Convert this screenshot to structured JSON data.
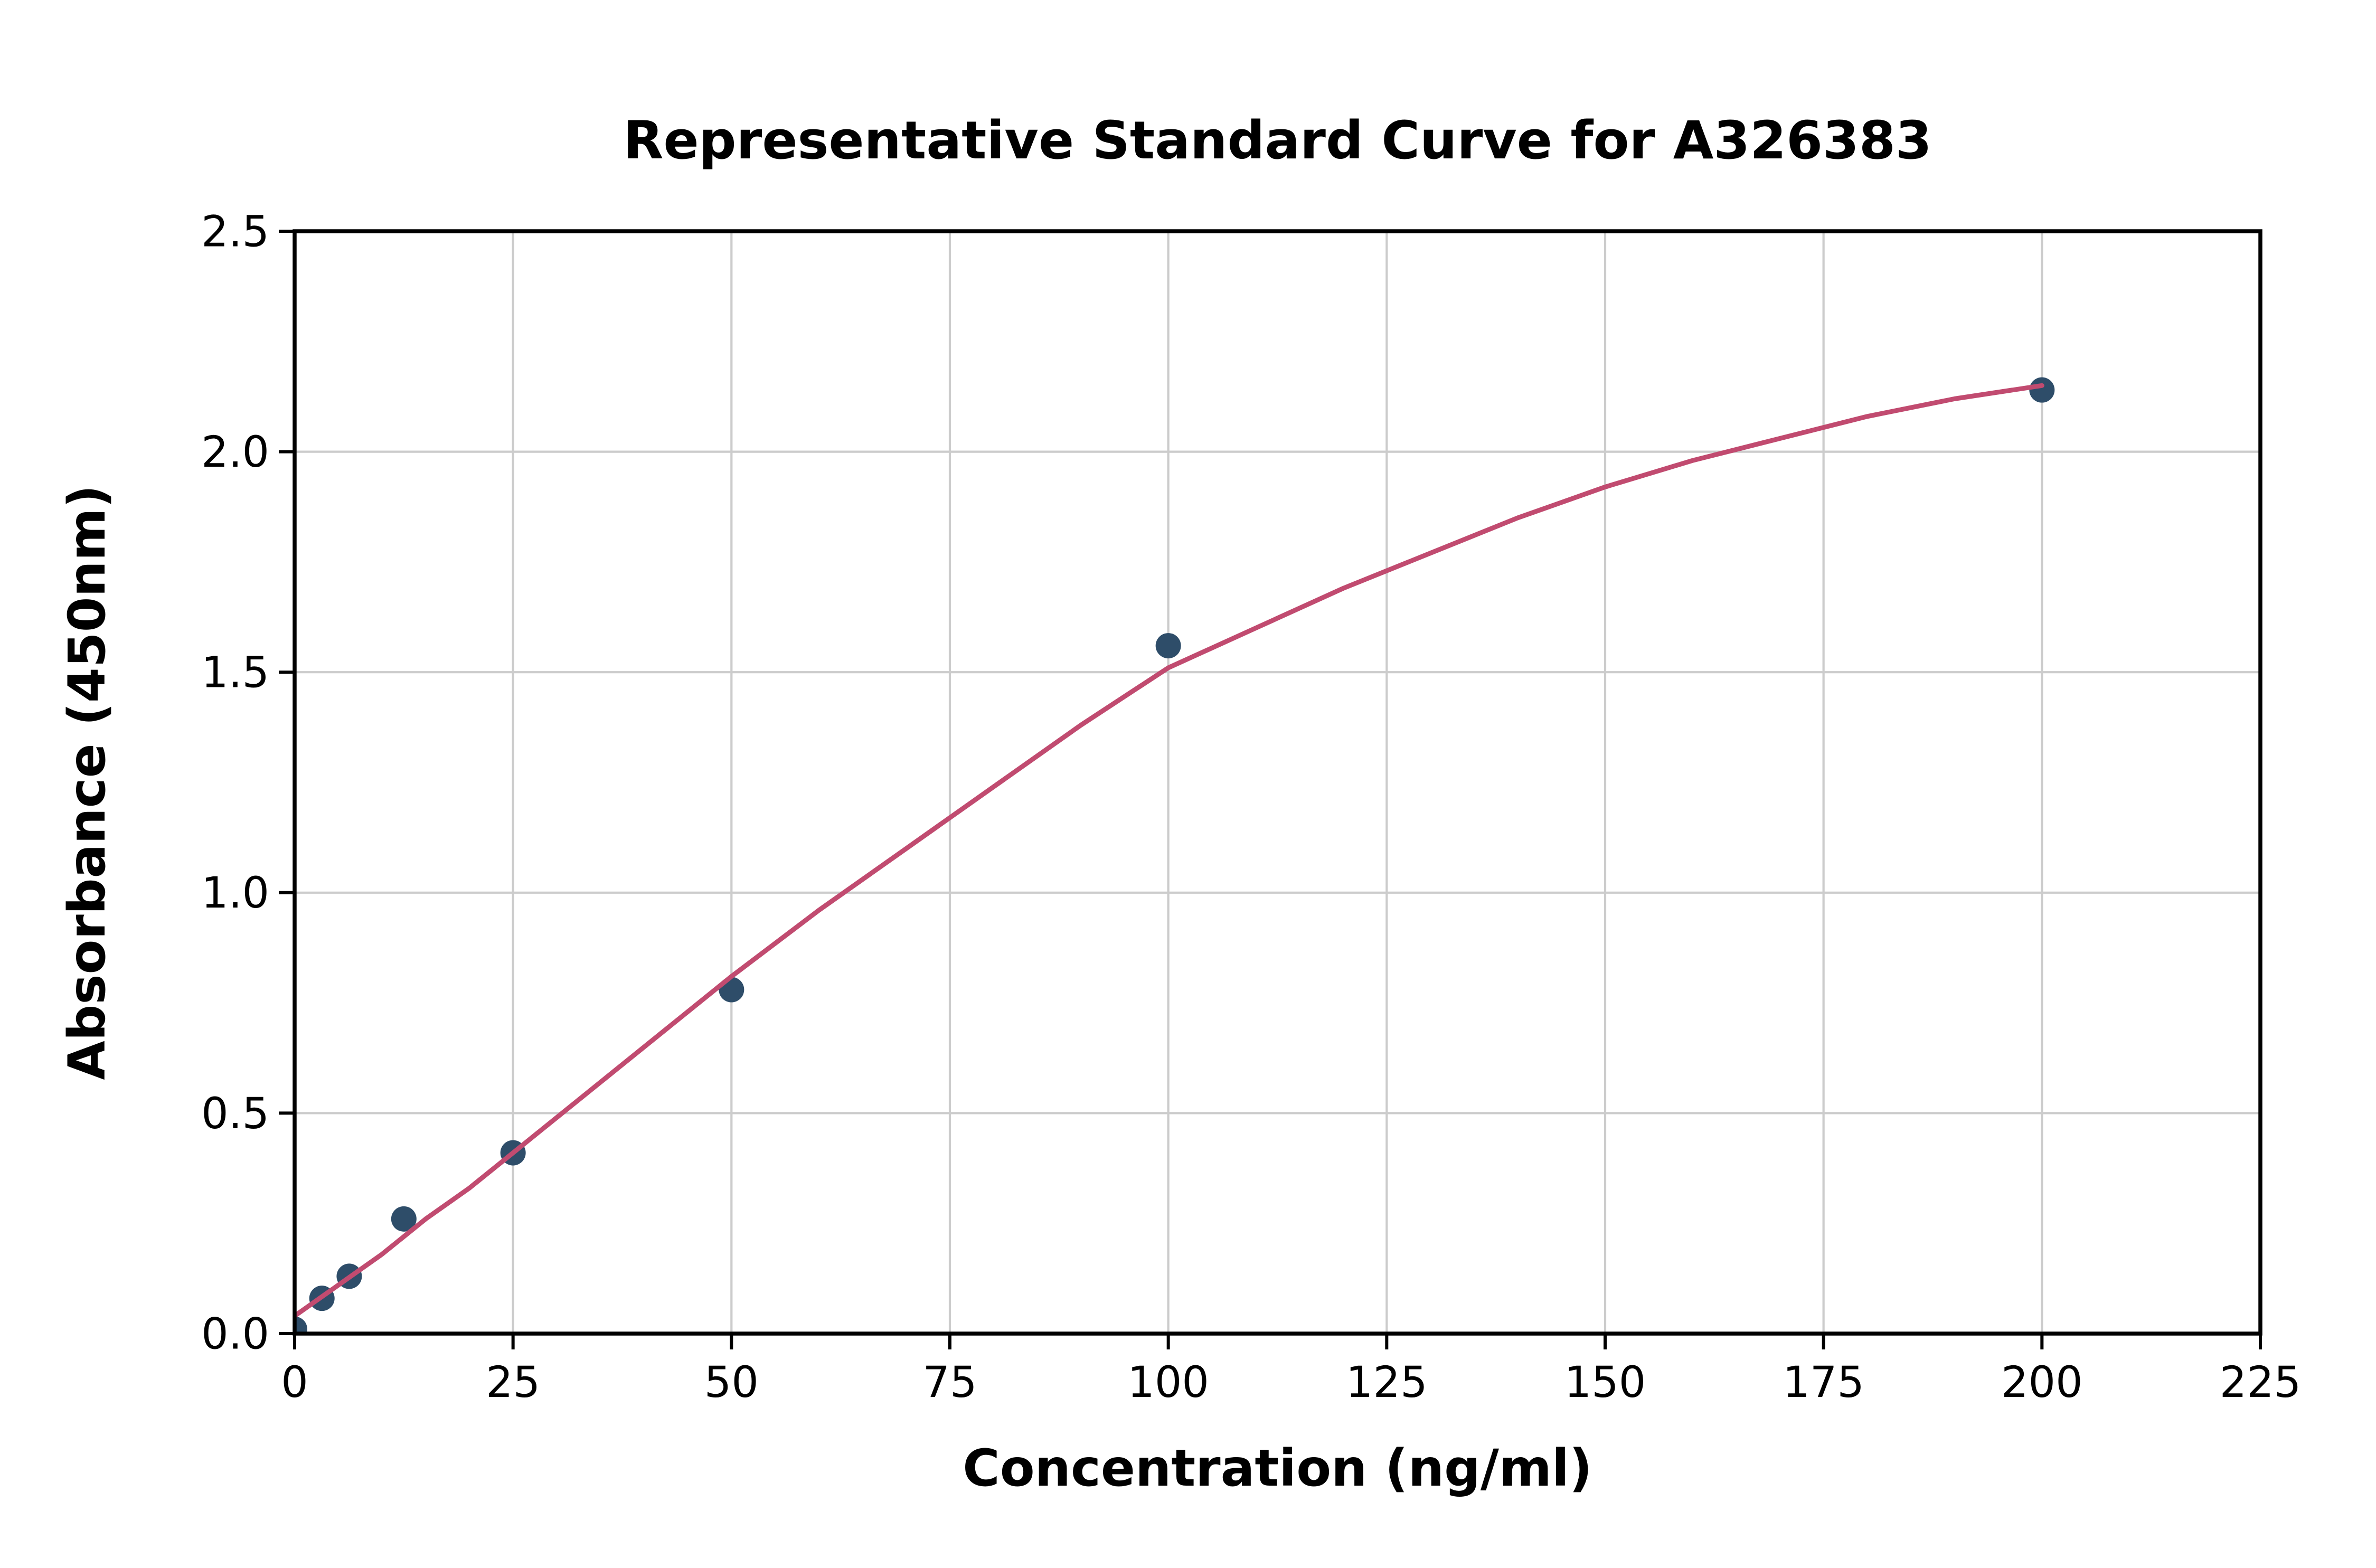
{
  "chart_data": {
    "type": "scatter",
    "title": "Representative Standard Curve for A326383",
    "xlabel": "Concentration (ng/ml)",
    "ylabel": "Absorbance (450nm)",
    "xlim": [
      0,
      225
    ],
    "ylim": [
      0,
      2.5
    ],
    "x_ticks": [
      0,
      25,
      50,
      75,
      100,
      125,
      150,
      175,
      200,
      225
    ],
    "x_tick_labels": [
      "0",
      "25",
      "50",
      "75",
      "100",
      "125",
      "150",
      "175",
      "200",
      "225"
    ],
    "y_ticks": [
      0,
      0.5,
      1.0,
      1.5,
      2.0,
      2.5
    ],
    "y_tick_labels": [
      "0.0",
      "0.5",
      "1.0",
      "1.5",
      "2.0",
      "2.5"
    ],
    "grid": true,
    "legend": false,
    "series": [
      {
        "name": "standard-data-points",
        "type": "scatter",
        "color": "#2e4d69",
        "marker_radius": 8,
        "x": [
          0,
          3.125,
          6.25,
          12.5,
          25,
          50,
          100,
          200
        ],
        "y": [
          0.01,
          0.08,
          0.13,
          0.26,
          0.41,
          0.78,
          1.56,
          2.14
        ]
      },
      {
        "name": "fitted-standard-curve",
        "type": "line",
        "color": "#c14b70",
        "line_width": 3,
        "x": [
          0,
          5,
          10,
          15,
          20,
          25,
          30,
          40,
          50,
          60,
          70,
          80,
          90,
          100,
          110,
          120,
          130,
          140,
          150,
          160,
          170,
          180,
          190,
          200
        ],
        "y": [
          0.04,
          0.11,
          0.18,
          0.26,
          0.33,
          0.41,
          0.49,
          0.65,
          0.81,
          0.96,
          1.1,
          1.24,
          1.38,
          1.51,
          1.6,
          1.69,
          1.77,
          1.85,
          1.92,
          1.98,
          2.03,
          2.08,
          2.12,
          2.15
        ]
      }
    ],
    "colors": {
      "background": "#ffffff",
      "grid": "#cccccc",
      "axis": "#000000",
      "text": "#000000",
      "point": "#2e4d69",
      "curve": "#c14b70"
    }
  }
}
